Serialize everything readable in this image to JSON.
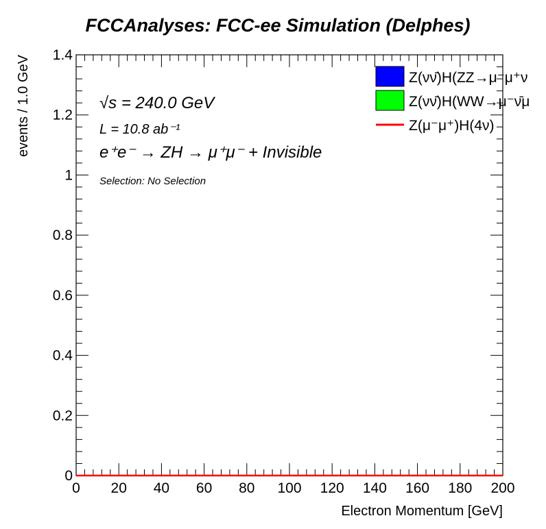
{
  "chart_data": {
    "type": "histogram",
    "title": "FCCAnalyses: FCC-ee Simulation (Delphes)",
    "xlabel": "Electron Momentum [GeV]",
    "ylabel": "events / 1.0 GeV",
    "xlim": [
      0,
      200
    ],
    "ylim": [
      0,
      1.4
    ],
    "x_ticks": [
      "0",
      "20",
      "40",
      "60",
      "80",
      "100",
      "120",
      "140",
      "160",
      "180",
      "200"
    ],
    "y_ticks": [
      "0",
      "0.2",
      "0.4",
      "0.6",
      "0.8",
      "1",
      "1.2",
      "1.4"
    ],
    "legend_position": "top-right",
    "series": [
      {
        "name": "Z(νν̄)H(ZZ→μ⁻μ⁺ν",
        "style": "filled",
        "color": "#0000ff",
        "values": [
          0
        ]
      },
      {
        "name": "Z(νν̄)H(WW→μ⁻ν̄μ",
        "style": "filled",
        "color": "#00ff00",
        "values": [
          0
        ]
      },
      {
        "name": "Z(μ⁻μ⁺)H(4ν)",
        "style": "line",
        "color": "#ff0000",
        "values": [
          0
        ]
      }
    ],
    "annotations": {
      "sqrt_s": "√s = 240.0 GeV",
      "lumi": "L = 10.8 ab⁻¹",
      "process": "e⁺e⁻ → ZH → μ⁺μ⁻ + Invisible",
      "selection": "Selection: No Selection"
    }
  }
}
